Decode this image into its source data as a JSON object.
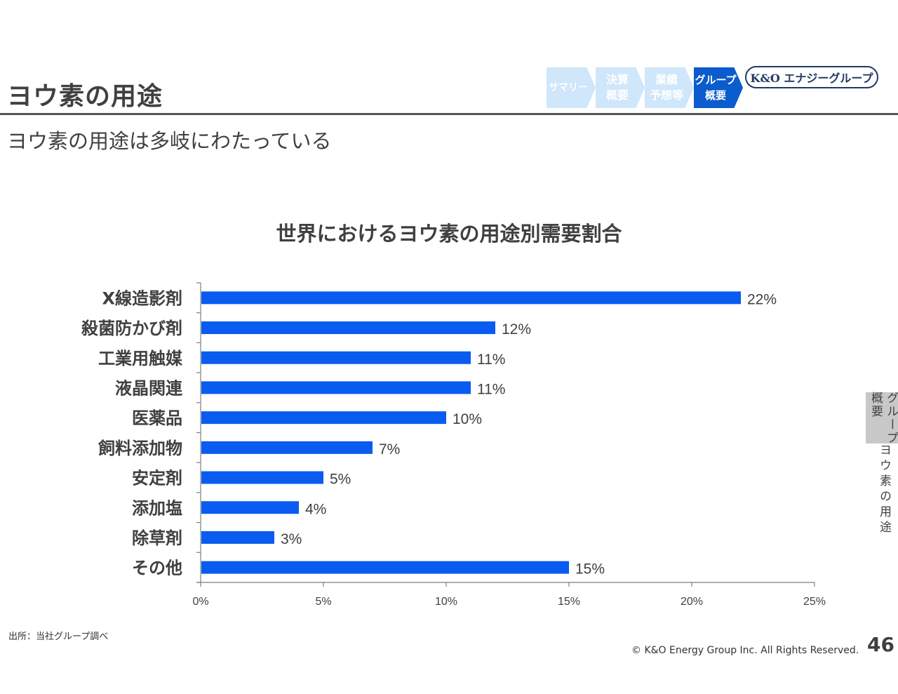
{
  "header": {
    "title": "ヨウ素の用途",
    "subtitle": "ヨウ素の用途は多岐にわたっている"
  },
  "nav": {
    "steps": [
      {
        "label": "サマリー",
        "state": "inactive"
      },
      {
        "label": "決算\n概要",
        "state": "inactive"
      },
      {
        "label": "業績\n予想等",
        "state": "inactive"
      },
      {
        "label": "グループ\n概要",
        "state": "active"
      }
    ],
    "logo_text": "K&O エナジーグループ",
    "colors": {
      "active": "#0b5ccc",
      "inactive": "#cfe6fb"
    }
  },
  "side_tab": {
    "section": "グループ概要",
    "section_line1": "グループ",
    "section_line2": "概要",
    "page_topic": "ヨウ素の用途"
  },
  "chart_data": {
    "type": "bar",
    "orientation": "horizontal",
    "title": "世界におけるヨウ素の用途別需要割合",
    "categories": [
      "X線造影剤",
      "殺菌防かび剤",
      "工業用触媒",
      "液晶関連",
      "医薬品",
      "飼料添加物",
      "安定剤",
      "添加塩",
      "除草剤",
      "その他"
    ],
    "values": [
      22,
      12,
      11,
      11,
      10,
      7,
      5,
      4,
      3,
      15
    ],
    "value_labels": [
      "22%",
      "12%",
      "11%",
      "11%",
      "10%",
      "7%",
      "5%",
      "4%",
      "3%",
      "15%"
    ],
    "xlabel": "",
    "ylabel": "",
    "xlim": [
      0,
      25
    ],
    "xticks": [
      0,
      5,
      10,
      15,
      20,
      25
    ],
    "xtick_labels": [
      "0%",
      "5%",
      "10%",
      "15%",
      "20%",
      "25%"
    ],
    "grid": false,
    "legend": "none",
    "bar_color": "#0a5bf0"
  },
  "footer": {
    "source": "出所：当社グループ調べ",
    "copyright": "© K&O Energy Group Inc. All Rights Reserved.",
    "page_number": "46"
  }
}
